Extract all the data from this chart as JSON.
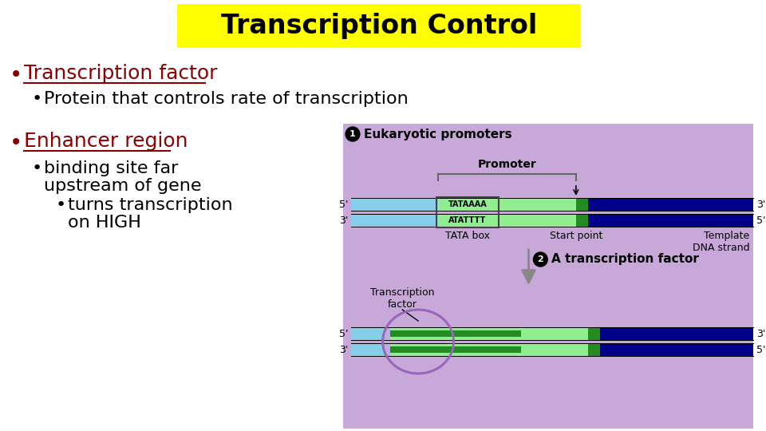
{
  "title": "Transcription Control",
  "title_bg": "#FFFF00",
  "title_color": "#000000",
  "title_fontsize": 24,
  "bg_color": "#FFFFFF",
  "bullet1_text": "Transcription factor",
  "bullet1_color": "#8B0000",
  "bullet2_text": "Protein that controls rate of transcription",
  "bullet2_color": "#000000",
  "bullet3_text": "Enhancer region",
  "bullet3_color": "#8B0000",
  "bullet4_color": "#000000",
  "diagram_bg": "#C8A8D8",
  "dna_light_blue": "#87CEEB",
  "dna_dark_blue": "#00008B",
  "dna_light_green": "#90EE90",
  "dna_dark_green": "#228B22",
  "ellipse_fill": "#C8A8D8",
  "ellipse_edge": "#9966BB",
  "tata_bg": "#90EE90"
}
